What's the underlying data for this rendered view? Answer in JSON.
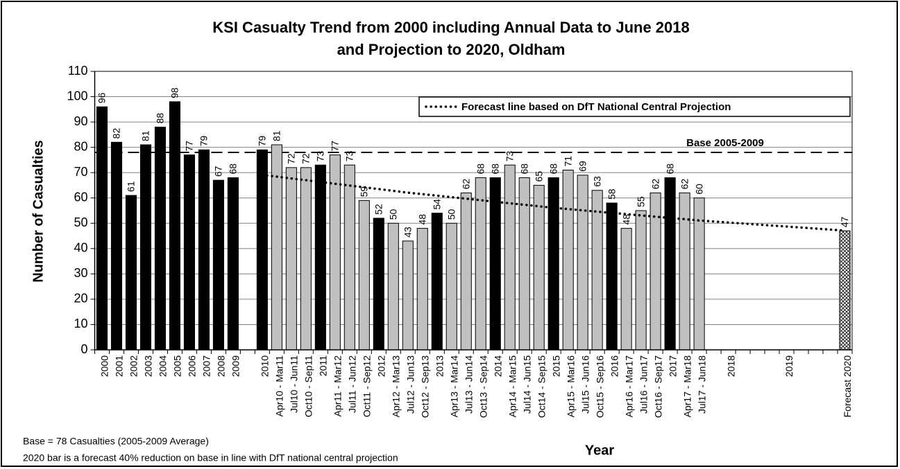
{
  "chart_data": {
    "type": "bar",
    "title": [
      "KSI Casualty Trend from 2000 including Annual Data to June 2018",
      "and Projection to 2020, Oldham"
    ],
    "x_label": "Year",
    "y_label": "Number of Casualties",
    "notes": [
      "Base = 78 Casualties (2005-2009 Average)",
      "2020 bar is a forecast 40% reduction on base in line with DfT national central projection"
    ],
    "categories": [
      "2000",
      "2001",
      "2002",
      "2003",
      "2004",
      "2005",
      "2006",
      "2007",
      "2008",
      "2009",
      null,
      "2010",
      "Apr10 - Mar11",
      "Jul10 - Jun11",
      "Oct10 - Sep11",
      "2011",
      "Apr11 - Mar12",
      "Jul11 - Jun12",
      "Oct11 - Sep12",
      "2012",
      "Apr12 - Mar13",
      "Jul12 - Jun13",
      "Oct12 - Sep13",
      "2013",
      "Apr13 - Mar14",
      "Jul13 - Jun14",
      "Oct13 - Sep14",
      "2014",
      "Apr14 - Mar15",
      "Jul14 - Jun15",
      "Oct14 - Sep15",
      "2015",
      "Apr15 - Mar16",
      "Jul15 - Jun16",
      "Oct15 - Sep16",
      "2016",
      "Apr16 - Mar17",
      "Jul16 - Jun17",
      "Oct16 - Sep17",
      "2017",
      "Apr17 - Mar18",
      "Jul17 - Jun18",
      null,
      "2018",
      null,
      null,
      null,
      "2019",
      null,
      null,
      null,
      "Forecast 2020"
    ],
    "values": [
      96,
      82,
      61,
      81,
      88,
      98,
      77,
      79,
      67,
      68,
      null,
      79,
      81,
      72,
      72,
      73,
      77,
      73,
      59,
      52,
      50,
      43,
      48,
      54,
      50,
      62,
      68,
      68,
      73,
      68,
      65,
      68,
      71,
      69,
      63,
      58,
      48,
      55,
      62,
      68,
      62,
      60,
      null,
      null,
      null,
      null,
      null,
      null,
      null,
      null,
      null,
      47
    ],
    "bar_colors": [
      "#000000",
      "#000000",
      "#000000",
      "#000000",
      "#000000",
      "#000000",
      "#000000",
      "#000000",
      "#000000",
      "#000000",
      null,
      "#000000",
      "#c0c0c0",
      "#c0c0c0",
      "#c0c0c0",
      "#000000",
      "#c0c0c0",
      "#c0c0c0",
      "#c0c0c0",
      "#000000",
      "#c0c0c0",
      "#c0c0c0",
      "#c0c0c0",
      "#000000",
      "#c0c0c0",
      "#c0c0c0",
      "#c0c0c0",
      "#000000",
      "#c0c0c0",
      "#c0c0c0",
      "#c0c0c0",
      "#000000",
      "#c0c0c0",
      "#c0c0c0",
      "#c0c0c0",
      "#000000",
      "#c0c0c0",
      "#c0c0c0",
      "#c0c0c0",
      "#000000",
      "#c0c0c0",
      "#c0c0c0",
      null,
      null,
      null,
      null,
      null,
      null,
      null,
      null,
      null,
      "crosshatch"
    ],
    "line": {
      "name": "Forecast line based on DfT National Central Projection",
      "color": "#000000",
      "style": "dotted",
      "values": [
        null,
        null,
        null,
        null,
        null,
        null,
        null,
        null,
        null,
        null,
        null,
        69.1,
        68.4,
        67.7,
        67.0,
        66.3,
        65.6,
        64.9,
        64.2,
        63.5,
        62.8,
        62.1,
        61.5,
        60.9,
        60.3,
        59.7,
        59.1,
        58.5,
        57.9,
        57.3,
        56.7,
        56.1,
        55.6,
        55.1,
        54.6,
        54.1,
        53.6,
        53.1,
        52.6,
        52.1,
        51.6,
        51.1,
        50.7,
        50.3,
        49.9,
        49.5,
        49.1,
        48.7,
        48.3,
        47.9,
        47.5,
        47.1
      ]
    },
    "reference_line": {
      "value": 78,
      "label": "Base 2005-2009",
      "style": "dashed",
      "color": "#000000"
    },
    "ylim": [
      0,
      110
    ],
    "yticks": [
      0,
      10,
      20,
      30,
      40,
      50,
      60,
      70,
      80,
      90,
      100,
      110
    ],
    "grid": true,
    "legend": "top-right"
  }
}
